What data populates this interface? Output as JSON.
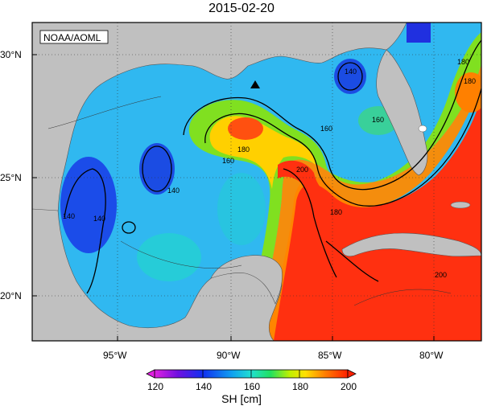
{
  "title": "2015-02-20",
  "credit": "NOAA/AOML",
  "map": {
    "lat_ticks": [
      "30°N",
      "25°N",
      "20°N"
    ],
    "lon_ticks": [
      "95°W",
      "90°W",
      "85°W",
      "80°W"
    ]
  },
  "contours": {
    "labels": [
      "140",
      "140",
      "140",
      "140",
      "160",
      "160",
      "160",
      "180",
      "180",
      "180",
      "200",
      "200",
      "180"
    ]
  },
  "marker": {
    "symbol": "triangle",
    "label": ""
  },
  "colorbar": {
    "label": "SH [cm]",
    "ticks": [
      "120",
      "140",
      "160",
      "180",
      "200"
    ],
    "min": 120,
    "max": 200,
    "colors": [
      "#e020e0",
      "#5010e0",
      "#1040f0",
      "#10a0f0",
      "#20e0e0",
      "#20e060",
      "#c0f000",
      "#ffe000",
      "#ff8000",
      "#ff2000"
    ]
  }
}
